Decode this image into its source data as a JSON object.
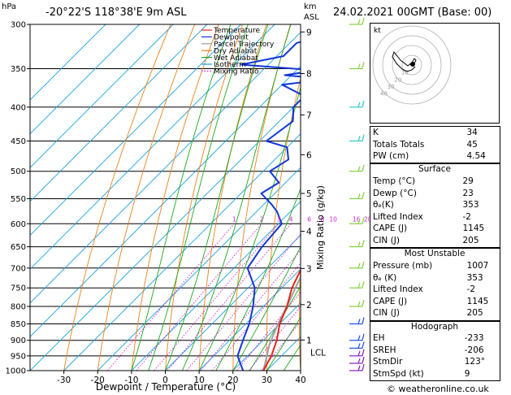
{
  "header": {
    "hpa_unit": "hPa",
    "location": "-20°22'S 118°38'E 9m ASL",
    "km_unit": "km",
    "asl_unit": "ASL",
    "datetime": "24.02.2021 00GMT (Base: 00)"
  },
  "colors": {
    "temperature": "#e8231c",
    "dewpoint": "#1036d8",
    "parcel": "#a0a0a0",
    "dry_adiabat": "#e8821c",
    "wet_adiabat": "#1ea81e",
    "isotherm": "#1aa0e0",
    "mixing_ratio": "#d01ed0",
    "barb_cyan": "#2ec8c8",
    "barb_green": "#86d040",
    "barb_blue": "#2050e0",
    "barb_purple": "#8020c0"
  },
  "chart_data": {
    "type": "line",
    "title": "-20°22'S 118°38'E 9m ASL",
    "xlabel": "Dewpoint / Temperature (°C)",
    "ylabel": "hPa",
    "y2label": "Mixing Ratio (g/kg)",
    "x_ticks": [
      "-30",
      "-20",
      "-10",
      "0",
      "10",
      "20",
      "30",
      "40"
    ],
    "y_ticks": [
      "300",
      "350",
      "400",
      "450",
      "500",
      "550",
      "600",
      "650",
      "700",
      "750",
      "800",
      "850",
      "900",
      "950",
      "1000"
    ],
    "pressure_range": [
      1000,
      300
    ],
    "temperature_range": [
      -40,
      40
    ],
    "skew": "skew-T log-p",
    "km_ticks": [
      {
        "label": "9",
        "p": 308
      },
      {
        "label": "8",
        "p": 356
      },
      {
        "label": "7",
        "p": 411
      },
      {
        "label": "6",
        "p": 472
      },
      {
        "label": "5",
        "p": 540
      },
      {
        "label": "4",
        "p": 616
      },
      {
        "label": "3",
        "p": 701
      },
      {
        "label": "2",
        "p": 795
      },
      {
        "label": "1",
        "p": 899
      }
    ],
    "lcl_label": "LCL",
    "lcl_p": 912,
    "mixing_ratio_labels": [
      "1",
      "2",
      "3",
      "4",
      "6",
      "8",
      "10",
      "16",
      "20",
      "25"
    ],
    "mixing_ratio_values": [
      1,
      2,
      3,
      4,
      6,
      8,
      10,
      16,
      20,
      25
    ],
    "legend": [
      "Temperature",
      "Dewpoint",
      "Parcel Trajectory",
      "Dry Adiabat",
      "Wet Adiabat",
      "Isotherm",
      "Mixing Ratio"
    ],
    "legend_position": "top-left",
    "series": [
      {
        "name": "Temperature",
        "points": [
          [
            1000,
            29
          ],
          [
            950,
            27
          ],
          [
            900,
            24
          ],
          [
            850,
            20
          ],
          [
            800,
            17
          ],
          [
            750,
            13
          ],
          [
            700,
            10
          ],
          [
            650,
            5
          ],
          [
            600,
            1
          ],
          [
            550,
            -4
          ],
          [
            500,
            -10
          ],
          [
            450,
            -16
          ],
          [
            400,
            -23
          ],
          [
            350,
            -31
          ],
          [
            320,
            -37
          ],
          [
            300,
            -41
          ]
        ]
      },
      {
        "name": "Dewpoint",
        "points": [
          [
            1000,
            23
          ],
          [
            950,
            17
          ],
          [
            900,
            14
          ],
          [
            850,
            11
          ],
          [
            800,
            7
          ],
          [
            750,
            2
          ],
          [
            700,
            -6
          ],
          [
            650,
            -8
          ],
          [
            600,
            -9
          ],
          [
            575,
            -14
          ],
          [
            560,
            -18
          ],
          [
            540,
            -24
          ],
          [
            520,
            -22
          ],
          [
            500,
            -28
          ],
          [
            480,
            -26
          ],
          [
            460,
            -30
          ],
          [
            450,
            -38
          ],
          [
            420,
            -36
          ],
          [
            400,
            -40
          ],
          [
            385,
            -40
          ],
          [
            370,
            -50
          ],
          [
            363,
            -38
          ],
          [
            358,
            -52
          ],
          [
            352,
            -44
          ],
          [
            345,
            -68
          ],
          [
            335,
            -58
          ],
          [
            320,
            -58
          ],
          [
            310,
            -50
          ],
          [
            300,
            -60
          ]
        ]
      },
      {
        "name": "Parcel Trajectory",
        "points": [
          [
            1000,
            29
          ],
          [
            912,
            23
          ],
          [
            850,
            19.5
          ],
          [
            800,
            17
          ],
          [
            750,
            14
          ],
          [
            700,
            11
          ],
          [
            650,
            7
          ],
          [
            600,
            3
          ],
          [
            550,
            -1
          ],
          [
            500,
            -6
          ],
          [
            450,
            -12
          ],
          [
            400,
            -19
          ],
          [
            350,
            -27
          ],
          [
            300,
            -37
          ]
        ]
      }
    ],
    "hodograph": {
      "label": "kt",
      "ring_labels": [
        "10",
        "20",
        "30",
        "40"
      ]
    },
    "wind_barbs_p": [
      300,
      350,
      400,
      450,
      500,
      550,
      600,
      650,
      700,
      750,
      800,
      850,
      900,
      925,
      950,
      975,
      1000
    ]
  },
  "indices": [
    {
      "label": "K",
      "value": "34"
    },
    {
      "label": "Totals Totals",
      "value": "45"
    },
    {
      "label": "PW (cm)",
      "value": "4.54"
    }
  ],
  "surface": {
    "title": "Surface",
    "rows": [
      {
        "label": "Temp (°C)",
        "value": "29"
      },
      {
        "label": "Dewp (°C)",
        "value": "23"
      },
      {
        "label": "θₑ(K)",
        "value": "353"
      },
      {
        "label": "Lifted Index",
        "value": "-2"
      },
      {
        "label": "CAPE (J)",
        "value": "1145"
      },
      {
        "label": "CIN (J)",
        "value": "205"
      }
    ]
  },
  "most_unstable": {
    "title": "Most Unstable",
    "rows": [
      {
        "label": "Pressure (mb)",
        "value": "1007"
      },
      {
        "label": "θₑ (K)",
        "value": "353"
      },
      {
        "label": "Lifted Index",
        "value": "-2"
      },
      {
        "label": "CAPE (J)",
        "value": "1145"
      },
      {
        "label": "CIN (J)",
        "value": "205"
      }
    ]
  },
  "hodograph_box": {
    "title": "Hodograph",
    "rows": [
      {
        "label": "EH",
        "value": "-233"
      },
      {
        "label": "SREH",
        "value": "-206"
      },
      {
        "label": "StmDir",
        "value": "123°"
      },
      {
        "label": "StmSpd (kt)",
        "value": "9"
      }
    ]
  },
  "footer": {
    "copyright": "© weatheronline.co.uk"
  }
}
